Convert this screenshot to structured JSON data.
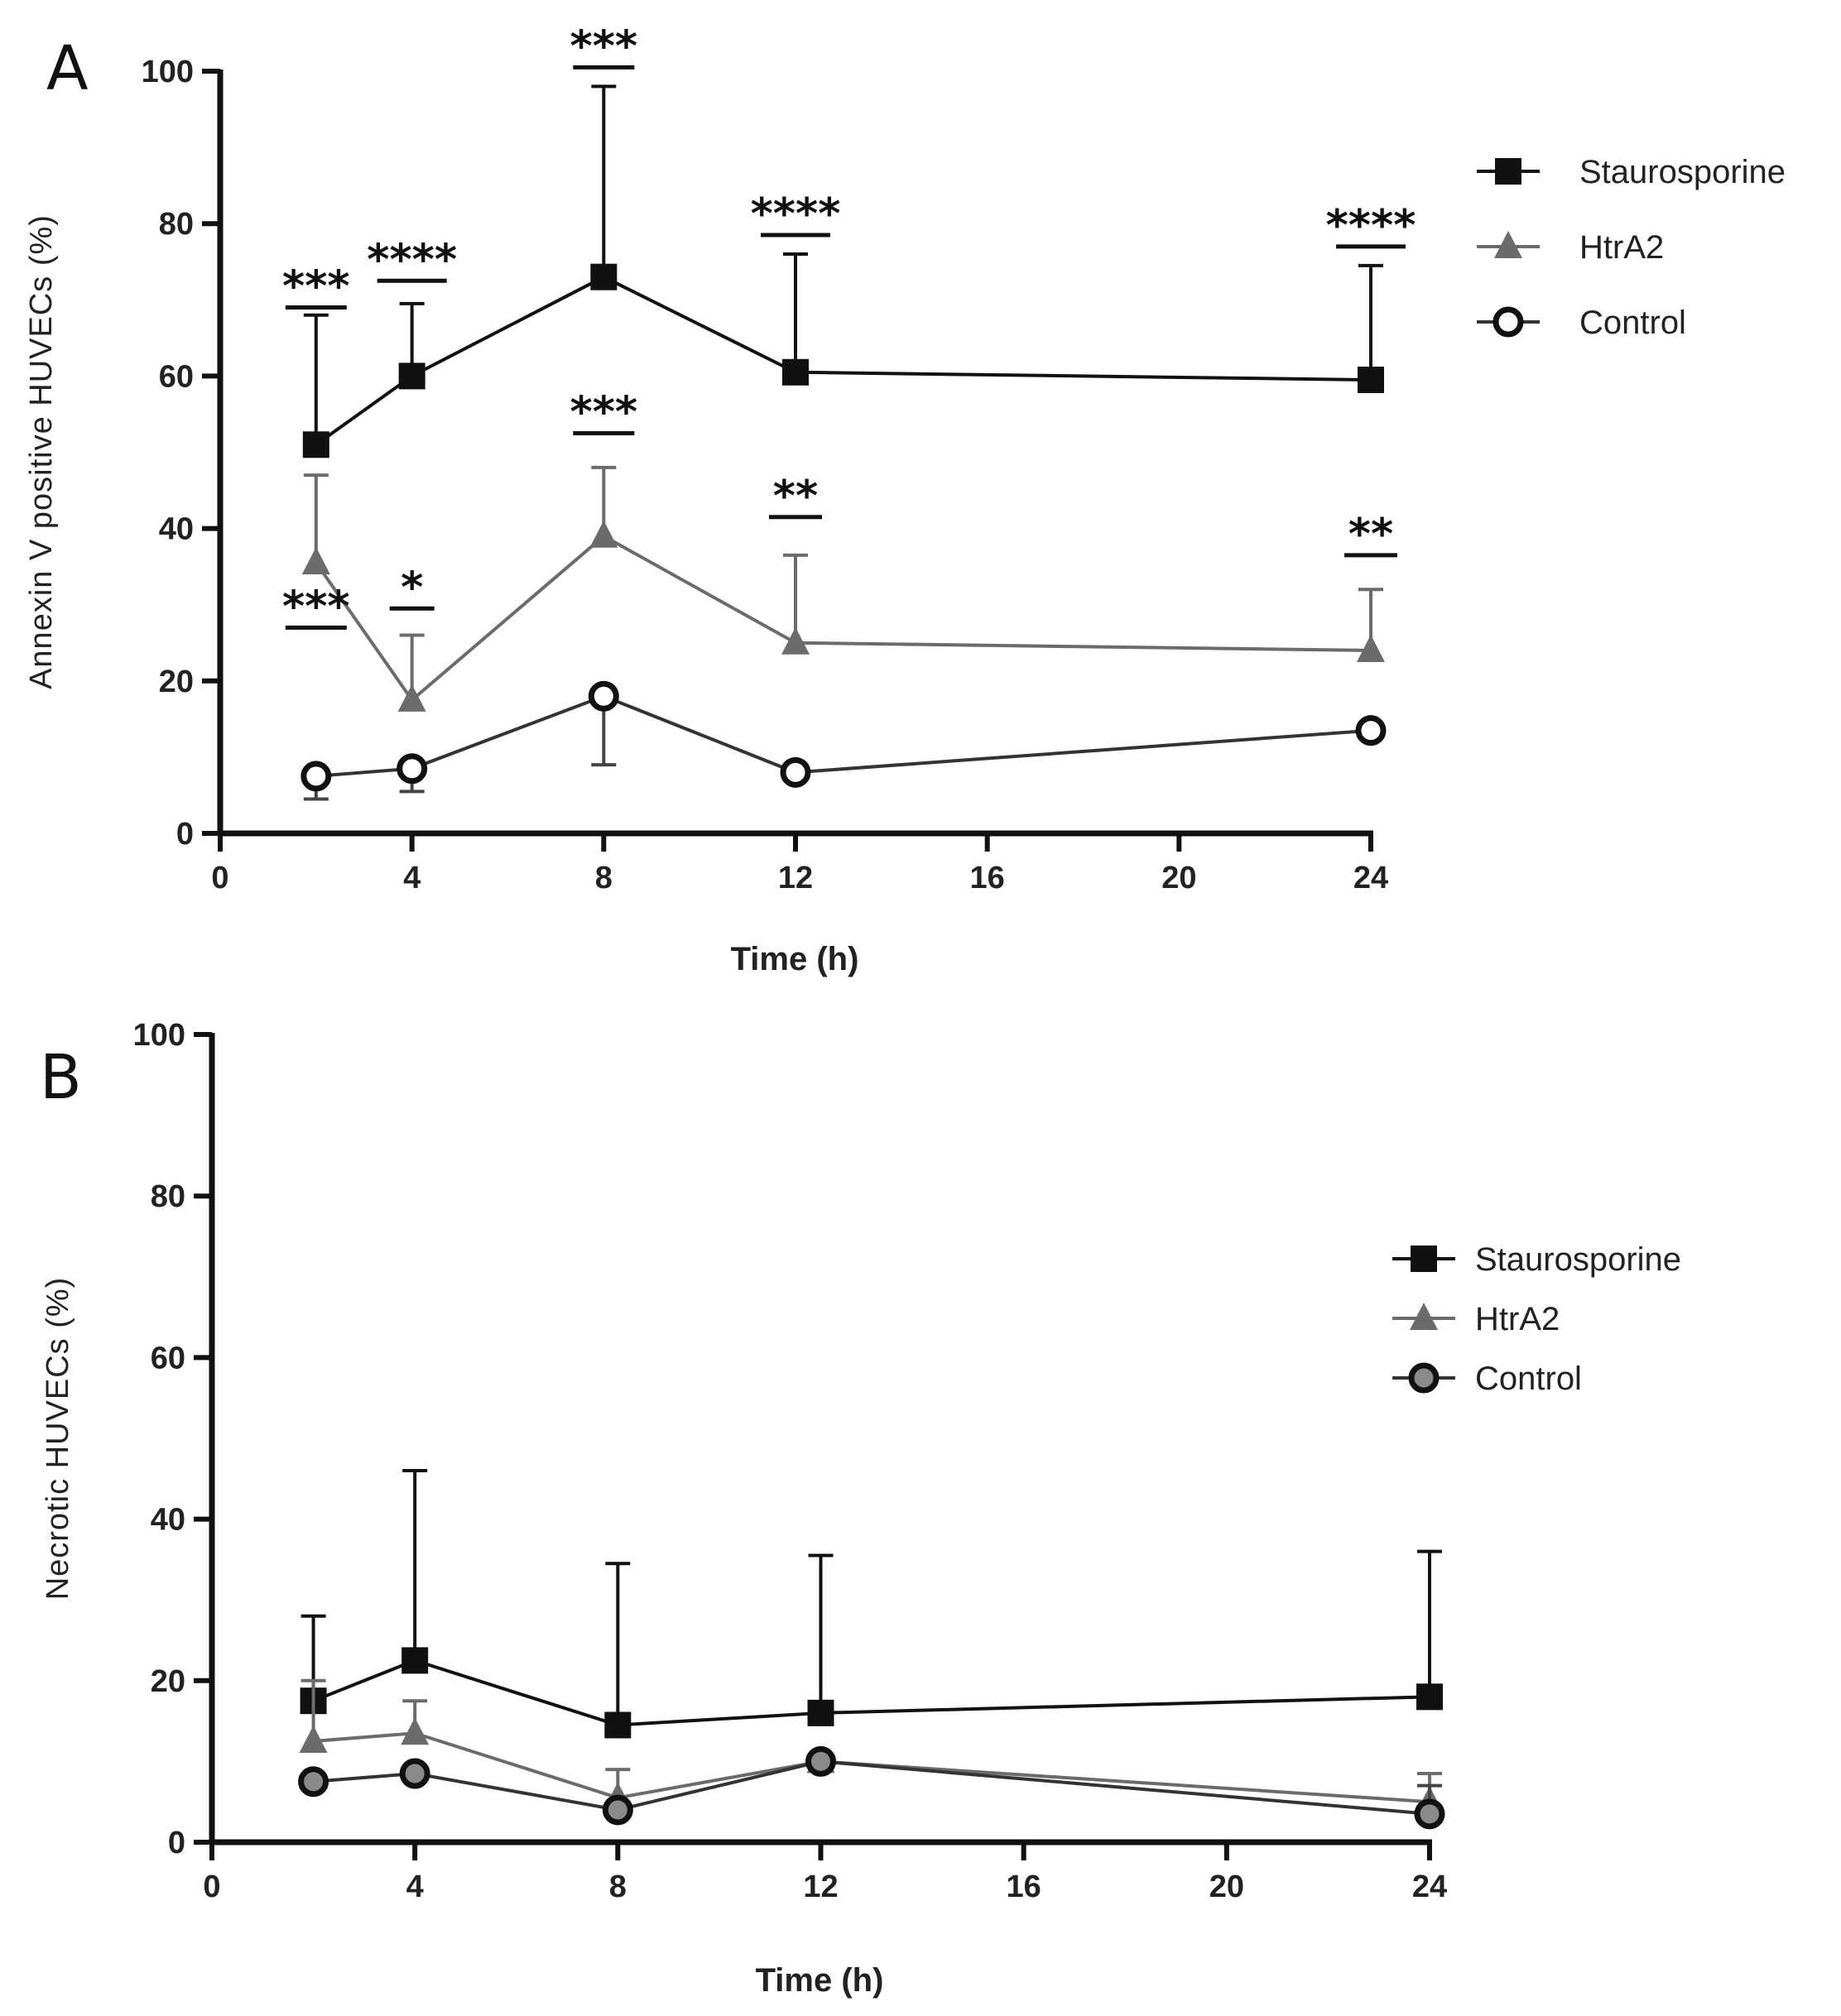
{
  "colors": {
    "axis": "#111111",
    "staurosporine": "#111111",
    "htra2": "#6b6b6b",
    "control_stroke": "#111111",
    "control_fill": "#ffffff",
    "control_fill_b": "#8a8a8a"
  },
  "chart_data": [
    {
      "panel": "A",
      "type": "line",
      "xlabel": "Time (h)",
      "ylabel": "Annexin V positive HUVECs (%)",
      "xlim": [
        0,
        24
      ],
      "ylim": [
        0,
        100
      ],
      "xticks": [
        0,
        4,
        8,
        12,
        16,
        20,
        24
      ],
      "yticks": [
        0,
        20,
        40,
        60,
        80,
        100
      ],
      "x_tick_positions": [
        0,
        4,
        8,
        12,
        16,
        20,
        24
      ],
      "x_tick_labels": [
        "0",
        "4",
        "8",
        "12",
        "16",
        "20",
        "24"
      ],
      "legend_position": "top-right",
      "series": [
        {
          "name": "Staurosporine",
          "marker": "square",
          "x": [
            2,
            4,
            8,
            12,
            24
          ],
          "y": [
            51,
            60,
            73,
            60.5,
            59.5
          ],
          "err_top": [
            68,
            69.5,
            98,
            76,
            74.5
          ]
        },
        {
          "name": "HtrA2",
          "marker": "triangle",
          "x": [
            2,
            4,
            8,
            12,
            24
          ],
          "y": [
            35.5,
            17.5,
            39,
            25,
            24
          ],
          "err_top": [
            47,
            26,
            48,
            36.5,
            32
          ]
        },
        {
          "name": "Control",
          "marker": "circle",
          "x": [
            2,
            4,
            8,
            12,
            24
          ],
          "y": [
            7.5,
            8.5,
            18,
            8,
            13.5
          ],
          "err_top": [
            null,
            null,
            null,
            null,
            null
          ],
          "err_bottom": [
            4.5,
            5.5,
            9,
            null,
            null
          ]
        }
      ],
      "annotations": [
        {
          "text": "***",
          "x": 2,
          "y": 69
        },
        {
          "text": "****",
          "x": 4,
          "y": 72.5
        },
        {
          "text": "***",
          "x": 8,
          "y": 100.5
        },
        {
          "text": "****",
          "x": 12,
          "y": 78.5
        },
        {
          "text": "****",
          "x": 24,
          "y": 77
        },
        {
          "text": "***",
          "x": 2,
          "y": 27
        },
        {
          "text": "*",
          "x": 4,
          "y": 29.5
        },
        {
          "text": "***",
          "x": 8,
          "y": 52.5
        },
        {
          "text": "**",
          "x": 12,
          "y": 41.5
        },
        {
          "text": "**",
          "x": 24,
          "y": 36.5
        }
      ]
    },
    {
      "panel": "B",
      "type": "line",
      "xlabel": "Time (h)",
      "ylabel": "Necrotic HUVECs (%)",
      "xlim": [
        0,
        24
      ],
      "ylim": [
        0,
        100
      ],
      "xticks": [
        0,
        4,
        8,
        12,
        16,
        20,
        24
      ],
      "yticks": [
        0,
        20,
        40,
        60,
        80,
        100
      ],
      "x_tick_positions": [
        0,
        4,
        8,
        12,
        16,
        20,
        24
      ],
      "x_tick_labels": [
        "0",
        "4",
        "8",
        "12",
        "16",
        "20",
        "24"
      ],
      "legend_position": "right",
      "series": [
        {
          "name": "Staurosporine",
          "marker": "square",
          "x": [
            2,
            4,
            8,
            12,
            24
          ],
          "y": [
            17.5,
            22.5,
            14.5,
            16,
            18
          ],
          "err_top": [
            28,
            46,
            34.5,
            35.5,
            36
          ]
        },
        {
          "name": "HtrA2",
          "marker": "triangle",
          "x": [
            2,
            4,
            8,
            12,
            24
          ],
          "y": [
            12.5,
            13.5,
            5.5,
            10,
            5
          ],
          "err_top": [
            20,
            17.5,
            9,
            null,
            8.5
          ]
        },
        {
          "name": "Control",
          "marker": "circle",
          "x": [
            2,
            4,
            8,
            12,
            24
          ],
          "y": [
            7.5,
            8.5,
            4,
            10,
            3.5
          ],
          "err_top": [
            null,
            null,
            null,
            null,
            7
          ],
          "err_bottom": [
            null,
            null,
            null,
            null,
            null
          ]
        }
      ],
      "annotations": []
    }
  ],
  "panel_labels": [
    "A",
    "B"
  ]
}
